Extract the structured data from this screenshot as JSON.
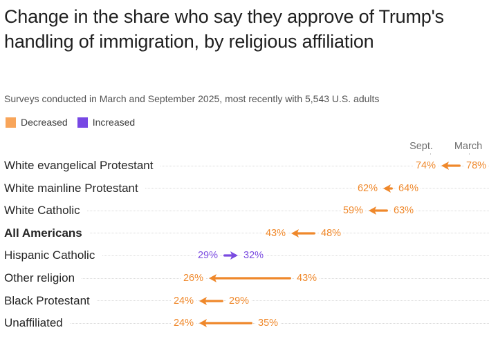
{
  "header": {
    "title": "Change in the share who say they approve of Trump's handling of immigration, by religious affiliation",
    "subtitle": "Surveys conducted in March and September 2025, most recently with 5,543 U.S. adults"
  },
  "legend": {
    "items": [
      {
        "label": "Decreased",
        "color": "#F8A55A"
      },
      {
        "label": "Increased",
        "color": "#7748E4"
      }
    ]
  },
  "chart_data": {
    "type": "arrow",
    "title": "Change in the share who say they approve of Trump's handling of immigration, by religious affiliation",
    "subtitle": "Surveys conducted in March and September 2025, most recently with 5,543 U.S. adults",
    "unit": "%",
    "column_labels": {
      "sept": "Sept.",
      "march": "March"
    },
    "legend_position": "top-left",
    "grid": "dotted-row-lines",
    "x_range_percent": [
      20,
      84
    ],
    "categories": [
      "White evangelical Protestant",
      "White mainline Protestant",
      "White Catholic",
      "All Americans",
      "Hispanic Catholic",
      "Other religion",
      "Black Protestant",
      "Unaffiliated"
    ],
    "series": [
      {
        "name": "March",
        "values": [
          78,
          64,
          63,
          48,
          29,
          43,
          29,
          35
        ]
      },
      {
        "name": "Sept.",
        "values": [
          74,
          62,
          59,
          43,
          32,
          26,
          24,
          24
        ]
      }
    ],
    "rows": [
      {
        "category": "White evangelical Protestant",
        "march": 78,
        "sept": 74,
        "change": "decreased",
        "bold": false
      },
      {
        "category": "White mainline Protestant",
        "march": 64,
        "sept": 62,
        "change": "decreased",
        "bold": false
      },
      {
        "category": "White Catholic",
        "march": 63,
        "sept": 59,
        "change": "decreased",
        "bold": false
      },
      {
        "category": "All Americans",
        "march": 48,
        "sept": 43,
        "change": "decreased",
        "bold": true
      },
      {
        "category": "Hispanic Catholic",
        "march": 29,
        "sept": 32,
        "change": "increased",
        "bold": false
      },
      {
        "category": "Other religion",
        "march": 43,
        "sept": 26,
        "change": "decreased",
        "bold": false
      },
      {
        "category": "Black Protestant",
        "march": 29,
        "sept": 24,
        "change": "decreased",
        "bold": false
      },
      {
        "category": "Unaffiliated",
        "march": 35,
        "sept": 24,
        "change": "decreased",
        "bold": false
      }
    ],
    "colors": {
      "decreased": "#EF882B",
      "increased": "#7A4BE0"
    }
  }
}
